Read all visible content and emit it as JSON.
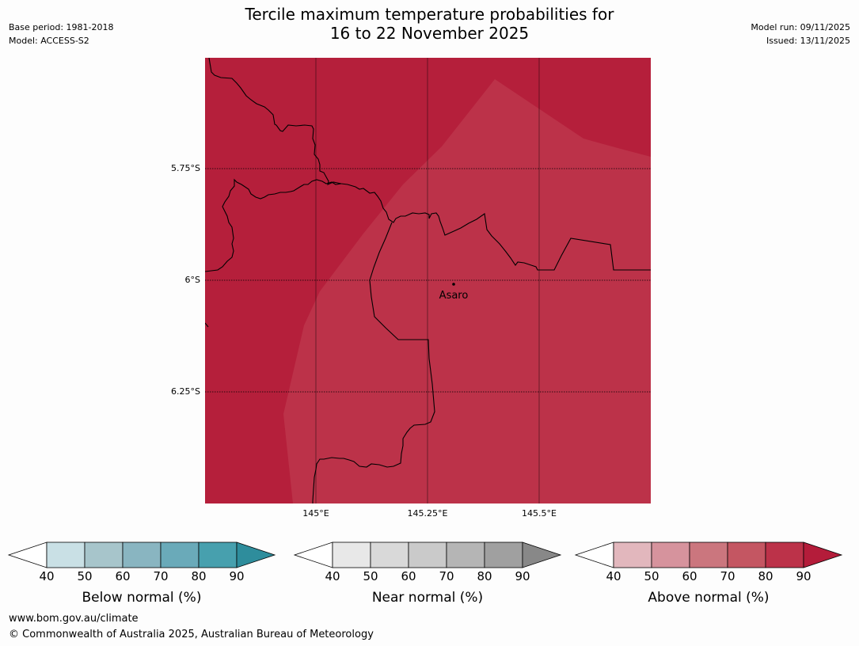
{
  "title": {
    "line1": "Tercile maximum temperature probabilities for",
    "line2": "16 to 22 November 2025"
  },
  "meta": {
    "base_period": "Base period: 1981-2018",
    "model": "Model: ACCESS-S2",
    "model_run": "Model run: 09/11/2025",
    "issued": "Issued: 13/11/2025"
  },
  "map": {
    "place_name": "Asaro",
    "lat_labels": [
      "5.75°S",
      "6°S",
      "6.25°S"
    ],
    "lon_labels": [
      "145°E",
      "145.25°E",
      "145.5°E"
    ],
    "colors": {
      "above_80_90": "#b51f3b",
      "above_70_80": "#bc3249",
      "border": "#000000"
    }
  },
  "colorbars": [
    {
      "name": "below-normal",
      "title": "Below normal (%)",
      "ticks": [
        "40",
        "50",
        "60",
        "70",
        "80",
        "90"
      ],
      "colors": [
        "#ffffff",
        "#c9e0e5",
        "#a7c5cb",
        "#89b5c1",
        "#6aaab9",
        "#47a0ae",
        "#2e8d9c"
      ]
    },
    {
      "name": "near-normal",
      "title": "Near normal (%)",
      "ticks": [
        "40",
        "50",
        "60",
        "70",
        "80",
        "90"
      ],
      "colors": [
        "#ffffff",
        "#e8e8e8",
        "#d9d9d9",
        "#cacaca",
        "#b5b5b5",
        "#a0a0a0",
        "#888888"
      ]
    },
    {
      "name": "above-normal",
      "title": "Above normal (%)",
      "ticks": [
        "40",
        "50",
        "60",
        "70",
        "80",
        "90"
      ],
      "colors": [
        "#ffffff",
        "#e2b7bd",
        "#d6939d",
        "#cb767e",
        "#c45662",
        "#bc3249",
        "#b41c3a"
      ]
    }
  ],
  "footer": {
    "url": "www.bom.gov.au/climate",
    "copyright": "© Commonwealth of Australia 2025, Australian Bureau of Meteorology"
  }
}
